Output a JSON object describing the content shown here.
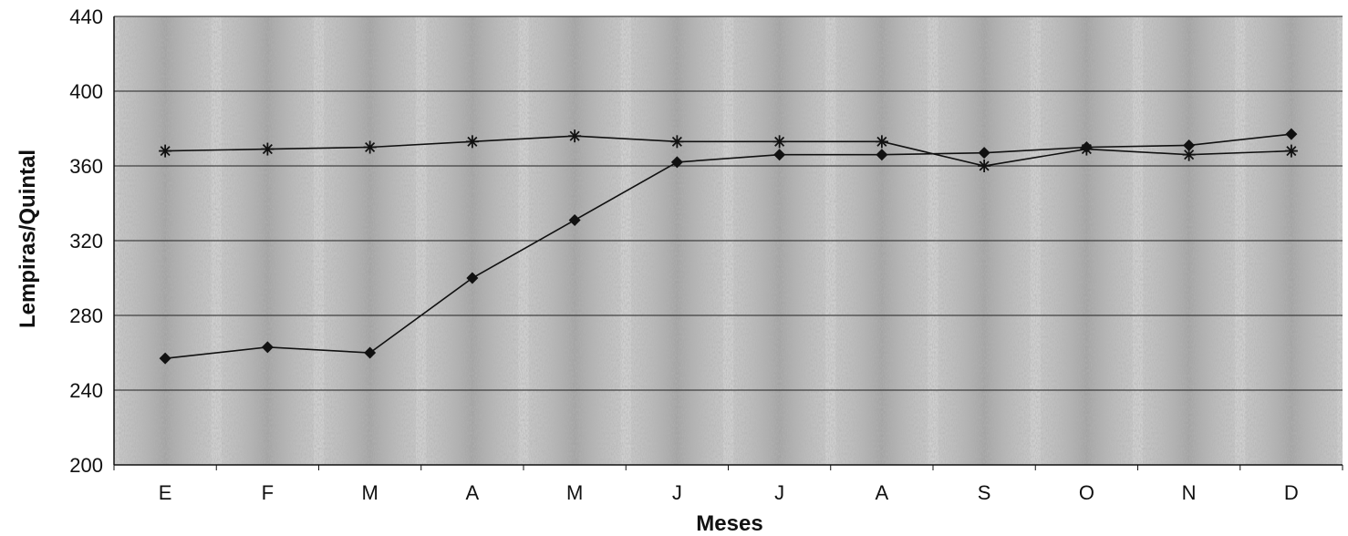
{
  "chart_data": {
    "type": "line",
    "title": "",
    "xlabel": "Meses",
    "ylabel": "Lempiras/Quintal",
    "categories": [
      "E",
      "F",
      "M",
      "A",
      "M",
      "J",
      "J",
      "A",
      "S",
      "O",
      "N",
      "D"
    ],
    "ylim": [
      200,
      440
    ],
    "yticks": [
      200,
      240,
      280,
      320,
      360,
      400,
      440
    ],
    "grid": "horizontal",
    "legend": "none",
    "series": [
      {
        "marker": "diamond",
        "color": "#111111",
        "values": [
          257,
          263,
          260,
          300,
          331,
          362,
          366,
          366,
          367,
          370,
          371,
          377
        ]
      },
      {
        "marker": "asterisk",
        "color": "#111111",
        "values": [
          368,
          369,
          370,
          373,
          376,
          373,
          373,
          373,
          360,
          369,
          366,
          368
        ]
      }
    ]
  },
  "colors": {
    "background": "#ffffff",
    "plot_texture": "#8a8a8a",
    "line": "#111111",
    "gridline": "#222222"
  }
}
